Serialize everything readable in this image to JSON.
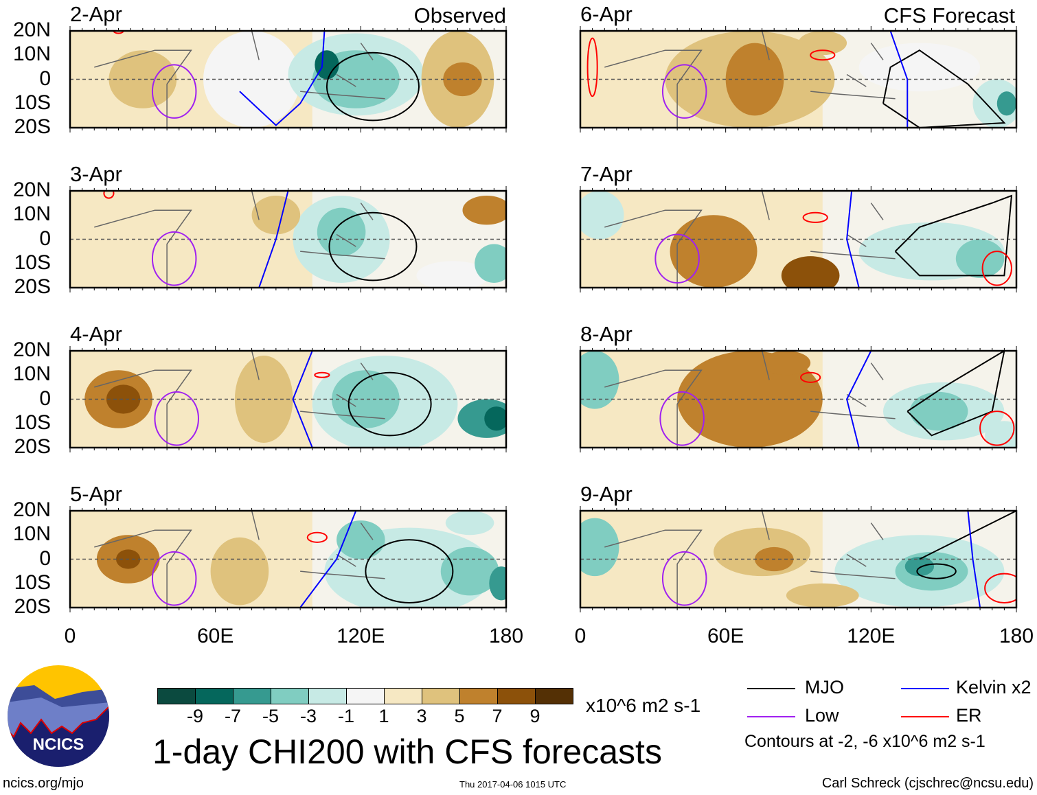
{
  "chart_data": {
    "type": "heatmap",
    "title": "1-day CHI200 with CFS forecasts",
    "units": "x10^6 m2 s-1",
    "xlim": [
      0,
      180
    ],
    "ylim": [
      -20,
      20
    ],
    "xticks": [
      "0",
      "60E",
      "120E",
      "180"
    ],
    "yticks": [
      "20N",
      "10N",
      "0",
      "10S",
      "20S"
    ],
    "column_labels": [
      "Observed",
      "CFS Forecast"
    ],
    "colorbar": {
      "ticks": [
        "-9",
        "-7",
        "-5",
        "-3",
        "-1",
        "1",
        "3",
        "5",
        "7",
        "9"
      ],
      "colors": [
        "#0b4a3f",
        "#05675c",
        "#369a90",
        "#80cdc1",
        "#c7eae5",
        "#f5f5f5",
        "#f6e8c3",
        "#dfc27d",
        "#bf812d",
        "#8c510a",
        "#543005"
      ]
    },
    "legend": [
      {
        "label": "MJO",
        "color": "#000000"
      },
      {
        "label": "Kelvin x2",
        "color": "#0000ff"
      },
      {
        "label": "Low",
        "color": "#a020f0"
      },
      {
        "label": "ER",
        "color": "#ff0000"
      }
    ],
    "contour_note": "Contours at -2, -6 x10^6 m2 s-1",
    "panels": [
      {
        "date": "2-Apr",
        "col": 0,
        "row": 0,
        "base": 2,
        "blobs": [
          [
            75,
            0,
            20,
            20,
            0
          ],
          [
            118,
            2,
            28,
            17,
            -2
          ],
          [
            118,
            0,
            18,
            12,
            -4
          ],
          [
            106,
            6,
            5,
            6,
            -8
          ],
          [
            160,
            0,
            15,
            20,
            3
          ],
          [
            162,
            0,
            8,
            7,
            5
          ],
          [
            30,
            0,
            14,
            12,
            3
          ]
        ],
        "contours": [
          {
            "k": "MJO",
            "e": [
              125,
              -3,
              19,
              14
            ]
          },
          {
            "k": "Low",
            "e": [
              43,
              -5,
              9,
              11
            ]
          },
          {
            "k": "Kelvin",
            "p": [
              [
                105,
                20
              ],
              [
                104,
                5
              ],
              [
                95,
                -10
              ],
              [
                85,
                -19
              ],
              [
                70,
                -5
              ]
            ]
          },
          {
            "k": "ER",
            "e": [
              20,
              20,
              2,
              1
            ]
          }
        ]
      },
      {
        "date": "3-Apr",
        "col": 0,
        "row": 1,
        "base": 2,
        "blobs": [
          [
            85,
            10,
            10,
            8,
            4
          ],
          [
            112,
            0,
            20,
            18,
            -2
          ],
          [
            112,
            3,
            10,
            10,
            -5
          ],
          [
            175,
            -10,
            8,
            8,
            -4
          ],
          [
            172,
            12,
            10,
            6,
            5
          ],
          [
            158,
            -15,
            15,
            6,
            0
          ]
        ],
        "contours": [
          {
            "k": "MJO",
            "e": [
              125,
              -3,
              18,
              14
            ]
          },
          {
            "k": "Low",
            "e": [
              43,
              -8,
              9,
              11
            ]
          },
          {
            "k": "Kelvin",
            "p": [
              [
                90,
                20
              ],
              [
                85,
                0
              ],
              [
                78,
                -20
              ]
            ]
          },
          {
            "k": "ER",
            "e": [
              16,
              19,
              2,
              2
            ]
          }
        ]
      },
      {
        "date": "4-Apr",
        "col": 0,
        "row": 2,
        "base": 2,
        "blobs": [
          [
            20,
            0,
            14,
            12,
            5
          ],
          [
            22,
            0,
            7,
            6,
            7
          ],
          [
            80,
            0,
            12,
            18,
            3
          ],
          [
            130,
            -2,
            30,
            20,
            -2
          ],
          [
            122,
            0,
            14,
            12,
            -5
          ],
          [
            172,
            -8,
            12,
            8,
            -6
          ],
          [
            176,
            -8,
            5,
            5,
            -8
          ]
        ],
        "contours": [
          {
            "k": "MJO",
            "e": [
              132,
              -2,
              17,
              13
            ]
          },
          {
            "k": "Low",
            "e": [
              44,
              -8,
              9,
              11
            ]
          },
          {
            "k": "Kelvin",
            "p": [
              [
                100,
                20
              ],
              [
                92,
                0
              ],
              [
                100,
                -20
              ]
            ]
          },
          {
            "k": "ER",
            "e": [
              104,
              10,
              3,
              1
            ]
          }
        ]
      },
      {
        "date": "5-Apr",
        "col": 0,
        "row": 3,
        "base": 2,
        "blobs": [
          [
            24,
            0,
            13,
            10,
            5
          ],
          [
            24,
            0,
            5,
            4,
            7
          ],
          [
            70,
            -5,
            12,
            14,
            3
          ],
          [
            140,
            -5,
            35,
            18,
            -2
          ],
          [
            120,
            8,
            10,
            8,
            -4
          ],
          [
            165,
            -5,
            12,
            10,
            -5
          ],
          [
            178,
            -10,
            5,
            7,
            -7
          ],
          [
            165,
            15,
            10,
            5,
            -3
          ]
        ],
        "contours": [
          {
            "k": "MJO",
            "e": [
              140,
              -5,
              18,
              13
            ]
          },
          {
            "k": "Low",
            "e": [
              43,
              -8,
              9,
              11
            ]
          },
          {
            "k": "Kelvin",
            "p": [
              [
                118,
                20
              ],
              [
                110,
                0
              ],
              [
                95,
                -20
              ]
            ]
          },
          {
            "k": "ER",
            "e": [
              102,
              9,
              4,
              2
            ]
          }
        ]
      },
      {
        "date": "6-Apr",
        "col": 1,
        "row": 0,
        "base": 2,
        "blobs": [
          [
            70,
            0,
            35,
            20,
            3
          ],
          [
            72,
            0,
            12,
            15,
            5
          ],
          [
            100,
            15,
            10,
            5,
            3
          ],
          [
            140,
            5,
            25,
            10,
            0
          ],
          [
            172,
            -10,
            10,
            10,
            -3
          ],
          [
            176,
            -10,
            4,
            5,
            -7
          ]
        ],
        "contours": [
          {
            "k": "MJO",
            "p": [
              [
                125,
                -10
              ],
              [
                128,
                5
              ],
              [
                140,
                12
              ],
              [
                160,
                -2
              ],
              [
                175,
                -18
              ],
              [
                140,
                -20
              ],
              [
                125,
                -10
              ]
            ]
          },
          {
            "k": "Low",
            "e": [
              43,
              -5,
              9,
              11
            ]
          },
          {
            "k": "Kelvin",
            "p": [
              [
                128,
                20
              ],
              [
                135,
                0
              ],
              [
                135,
                -20
              ]
            ]
          },
          {
            "k": "ER",
            "e": [
              100,
              10,
              5,
              2
            ]
          },
          {
            "k": "ER",
            "e": [
              5,
              5,
              2,
              12
            ]
          }
        ]
      },
      {
        "date": "7-Apr",
        "col": 1,
        "row": 1,
        "base": 2,
        "blobs": [
          [
            55,
            -5,
            18,
            15,
            5
          ],
          [
            95,
            -15,
            12,
            8,
            7
          ],
          [
            145,
            -5,
            30,
            12,
            -2
          ],
          [
            8,
            10,
            10,
            10,
            -2
          ],
          [
            165,
            -8,
            10,
            8,
            -4
          ]
        ],
        "contours": [
          {
            "k": "MJO",
            "p": [
              [
                130,
                -5
              ],
              [
                140,
                5
              ],
              [
                170,
                15
              ],
              [
                178,
                18
              ],
              [
                175,
                -15
              ],
              [
                140,
                -15
              ],
              [
                130,
                -5
              ]
            ]
          },
          {
            "k": "Low",
            "e": [
              40,
              -8,
              9,
              10
            ]
          },
          {
            "k": "Kelvin",
            "p": [
              [
                112,
                20
              ],
              [
                110,
                0
              ],
              [
                115,
                -20
              ]
            ]
          },
          {
            "k": "ER",
            "e": [
              97,
              9,
              5,
              2
            ]
          },
          {
            "k": "ER",
            "e": [
              172,
              -12,
              6,
              7
            ]
          }
        ]
      },
      {
        "date": "8-Apr",
        "col": 1,
        "row": 2,
        "base": 2,
        "blobs": [
          [
            70,
            0,
            30,
            20,
            5
          ],
          [
            85,
            15,
            10,
            5,
            5
          ],
          [
            150,
            -5,
            25,
            12,
            -3
          ],
          [
            148,
            -5,
            12,
            8,
            -5
          ],
          [
            6,
            8,
            10,
            12,
            -4
          ],
          [
            175,
            -15,
            8,
            6,
            -3
          ]
        ],
        "contours": [
          {
            "k": "MJO",
            "p": [
              [
                135,
                -5
              ],
              [
                150,
                5
              ],
              [
                175,
                20
              ],
              [
                170,
                -5
              ],
              [
                145,
                -15
              ],
              [
                135,
                -5
              ]
            ]
          },
          {
            "k": "Low",
            "e": [
              42,
              -8,
              9,
              11
            ]
          },
          {
            "k": "Kelvin",
            "p": [
              [
                120,
                20
              ],
              [
                110,
                0
              ],
              [
                115,
                -20
              ]
            ]
          },
          {
            "k": "ER",
            "e": [
              95,
              9,
              4,
              2
            ]
          },
          {
            "k": "ER",
            "e": [
              172,
              -12,
              7,
              7
            ]
          }
        ]
      },
      {
        "date": "9-Apr",
        "col": 1,
        "row": 3,
        "base": 2,
        "blobs": [
          [
            75,
            3,
            20,
            10,
            3
          ],
          [
            80,
            0,
            8,
            5,
            5
          ],
          [
            140,
            -5,
            35,
            15,
            -3
          ],
          [
            145,
            -5,
            15,
            8,
            -5
          ],
          [
            140,
            -3,
            6,
            4,
            -7
          ],
          [
            6,
            5,
            10,
            12,
            -4
          ],
          [
            100,
            -15,
            15,
            5,
            3
          ]
        ],
        "contours": [
          {
            "k": "MJO",
            "p": [
              [
                140,
                0
              ],
              [
                150,
                5
              ],
              [
                170,
                15
              ],
              [
                180,
                20
              ]
            ]
          },
          {
            "k": "MJO",
            "e": [
              147,
              -5,
              8,
              3
            ]
          },
          {
            "k": "Low",
            "e": [
              43,
              -8,
              9,
              11
            ]
          },
          {
            "k": "Kelvin",
            "p": [
              [
                160,
                20
              ],
              [
                162,
                0
              ],
              [
                165,
                -20
              ]
            ]
          },
          {
            "k": "ER",
            "e": [
              175,
              -12,
              8,
              6
            ]
          }
        ]
      }
    ]
  },
  "footer": {
    "site": "ncics.org/mjo",
    "timestamp": "Thu 2017-04-06 1015 UTC",
    "author": "Carl Schreck (cjschrec@ncsu.edu)",
    "logo_text": "NCICS"
  }
}
